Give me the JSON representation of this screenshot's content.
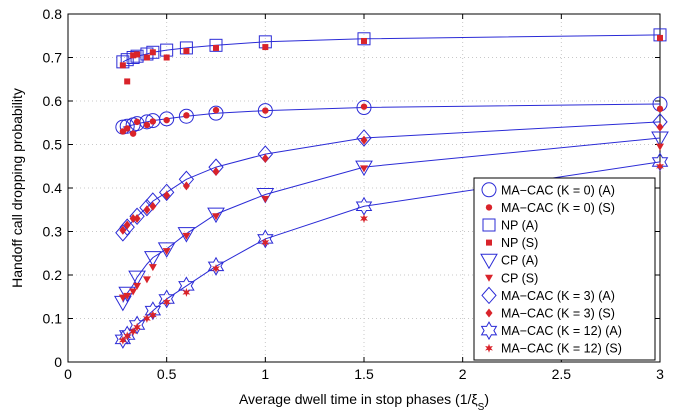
{
  "chart_data": {
    "type": "line",
    "xlabel": "Average dwell time in stop phases (1/ξ",
    "xlabel_sub": "S",
    "xlabel_close": ")",
    "ylabel": "Handoff call dropping probability",
    "xlim": [
      0,
      3
    ],
    "ylim": [
      0,
      0.8
    ],
    "xticks": [
      0,
      0.5,
      1,
      1.5,
      2,
      2.5,
      3
    ],
    "xtick_labels": [
      "0",
      "0.5",
      "1",
      "1.5",
      "2",
      "2.5",
      "3"
    ],
    "yticks": [
      0,
      0.1,
      0.2,
      0.3,
      0.4,
      0.5,
      0.6,
      0.7,
      0.8
    ],
    "ytick_labels": [
      "0",
      "0.1",
      "0.2",
      "0.3",
      "0.4",
      "0.5",
      "0.6",
      "0.7",
      "0.8"
    ],
    "grid": true,
    "legend_position": "bottom-right",
    "colors": {
      "analytical": "#2b2bd6",
      "simulation": "#d9232a",
      "axis": "#000000",
      "grid": "#c8c8c8"
    },
    "series": [
      {
        "name": "MA−CAC (K = 0) (A)",
        "kind": "analytical",
        "marker": "circle",
        "points": [
          [
            0.278,
            0.54
          ],
          [
            0.3,
            0.542
          ],
          [
            0.33,
            0.545
          ],
          [
            0.35,
            0.548
          ],
          [
            0.4,
            0.552
          ],
          [
            0.43,
            0.555
          ],
          [
            0.5,
            0.559
          ],
          [
            0.6,
            0.565
          ],
          [
            0.75,
            0.572
          ],
          [
            1.0,
            0.578
          ],
          [
            1.5,
            0.585
          ],
          [
            3.0,
            0.593
          ]
        ],
        "markers_at": [
          0.278,
          0.3,
          0.33,
          0.35,
          0.4,
          0.43,
          0.5,
          0.6,
          0.75,
          1.0,
          1.5,
          3.0
        ]
      },
      {
        "name": "MA−CAC (K = 0) (S)",
        "kind": "simulation",
        "marker": "dot",
        "points": [
          [
            0.278,
            0.53
          ],
          [
            0.3,
            0.537
          ],
          [
            0.33,
            0.525
          ],
          [
            0.35,
            0.552
          ],
          [
            0.4,
            0.545
          ],
          [
            0.43,
            0.553
          ],
          [
            0.5,
            0.556
          ],
          [
            0.6,
            0.567
          ],
          [
            0.75,
            0.579
          ],
          [
            1.0,
            0.578
          ],
          [
            1.5,
            0.587
          ],
          [
            3.0,
            0.582
          ]
        ]
      },
      {
        "name": "NP (A)",
        "kind": "analytical",
        "marker": "square",
        "points": [
          [
            0.278,
            0.69
          ],
          [
            0.3,
            0.695
          ],
          [
            0.33,
            0.7
          ],
          [
            0.35,
            0.703
          ],
          [
            0.4,
            0.708
          ],
          [
            0.43,
            0.712
          ],
          [
            0.5,
            0.717
          ],
          [
            0.6,
            0.722
          ],
          [
            0.75,
            0.728
          ],
          [
            1.0,
            0.736
          ],
          [
            1.5,
            0.743
          ],
          [
            3.0,
            0.752
          ]
        ],
        "markers_at": [
          0.278,
          0.3,
          0.33,
          0.35,
          0.4,
          0.43,
          0.5,
          0.6,
          0.75,
          1.0,
          1.5,
          3.0
        ]
      },
      {
        "name": "NP (S)",
        "kind": "simulation",
        "marker": "filled-square",
        "points": [
          [
            0.278,
            0.682
          ],
          [
            0.3,
            0.645
          ],
          [
            0.33,
            0.705
          ],
          [
            0.35,
            0.707
          ],
          [
            0.4,
            0.7
          ],
          [
            0.43,
            0.712
          ],
          [
            0.5,
            0.7
          ],
          [
            0.6,
            0.715
          ],
          [
            0.75,
            0.722
          ],
          [
            1.0,
            0.724
          ],
          [
            1.5,
            0.738
          ],
          [
            3.0,
            0.745
          ]
        ]
      },
      {
        "name": "CP (A)",
        "kind": "analytical",
        "marker": "triangle-down",
        "points": [
          [
            0.278,
            0.137
          ],
          [
            0.3,
            0.158
          ],
          [
            0.33,
            0.177
          ],
          [
            0.35,
            0.195
          ],
          [
            0.4,
            0.225
          ],
          [
            0.43,
            0.24
          ],
          [
            0.5,
            0.26
          ],
          [
            0.6,
            0.295
          ],
          [
            0.75,
            0.34
          ],
          [
            1.0,
            0.385
          ],
          [
            1.5,
            0.448
          ],
          [
            3.0,
            0.515
          ]
        ],
        "markers_at": [
          0.278,
          0.3,
          0.35,
          0.43,
          0.5,
          0.6,
          0.75,
          1.0,
          1.5,
          3.0
        ]
      },
      {
        "name": "CP (S)",
        "kind": "simulation",
        "marker": "filled-triangle-down",
        "points": [
          [
            0.278,
            0.148
          ],
          [
            0.3,
            0.152
          ],
          [
            0.33,
            0.162
          ],
          [
            0.35,
            0.175
          ],
          [
            0.4,
            0.19
          ],
          [
            0.43,
            0.218
          ],
          [
            0.5,
            0.255
          ],
          [
            0.6,
            0.29
          ],
          [
            0.75,
            0.335
          ],
          [
            1.0,
            0.375
          ],
          [
            1.5,
            0.445
          ],
          [
            3.0,
            0.495
          ]
        ]
      },
      {
        "name": "MA−CAC (K = 3) (A)",
        "kind": "analytical",
        "marker": "diamond",
        "points": [
          [
            0.278,
            0.297
          ],
          [
            0.3,
            0.31
          ],
          [
            0.33,
            0.325
          ],
          [
            0.35,
            0.335
          ],
          [
            0.4,
            0.355
          ],
          [
            0.43,
            0.37
          ],
          [
            0.5,
            0.39
          ],
          [
            0.6,
            0.42
          ],
          [
            0.75,
            0.448
          ],
          [
            1.0,
            0.478
          ],
          [
            1.5,
            0.515
          ],
          [
            3.0,
            0.552
          ]
        ],
        "markers_at": [
          0.278,
          0.3,
          0.35,
          0.4,
          0.43,
          0.5,
          0.6,
          0.75,
          1.0,
          1.5,
          3.0
        ]
      },
      {
        "name": "MA−CAC (K = 3) (S)",
        "kind": "simulation",
        "marker": "filled-diamond",
        "points": [
          [
            0.278,
            0.303
          ],
          [
            0.3,
            0.315
          ],
          [
            0.33,
            0.33
          ],
          [
            0.35,
            0.33
          ],
          [
            0.4,
            0.35
          ],
          [
            0.43,
            0.358
          ],
          [
            0.5,
            0.383
          ],
          [
            0.6,
            0.405
          ],
          [
            0.75,
            0.438
          ],
          [
            1.0,
            0.468
          ],
          [
            1.5,
            0.51
          ],
          [
            3.0,
            0.54
          ]
        ]
      },
      {
        "name": "MA−CAC (K = 12) (A)",
        "kind": "analytical",
        "marker": "hexagram",
        "points": [
          [
            0.278,
            0.052
          ],
          [
            0.3,
            0.062
          ],
          [
            0.33,
            0.072
          ],
          [
            0.35,
            0.085
          ],
          [
            0.4,
            0.105
          ],
          [
            0.43,
            0.118
          ],
          [
            0.5,
            0.145
          ],
          [
            0.6,
            0.175
          ],
          [
            0.75,
            0.22
          ],
          [
            1.0,
            0.283
          ],
          [
            1.5,
            0.358
          ],
          [
            3.0,
            0.46
          ]
        ],
        "markers_at": [
          0.278,
          0.3,
          0.35,
          0.43,
          0.5,
          0.6,
          0.75,
          1.0,
          1.5,
          3.0
        ]
      },
      {
        "name": "MA−CAC (K = 12) (S)",
        "kind": "simulation",
        "marker": "filled-star",
        "points": [
          [
            0.278,
            0.05
          ],
          [
            0.3,
            0.06
          ],
          [
            0.33,
            0.07
          ],
          [
            0.35,
            0.08
          ],
          [
            0.4,
            0.1
          ],
          [
            0.43,
            0.108
          ],
          [
            0.5,
            0.138
          ],
          [
            0.6,
            0.16
          ],
          [
            0.75,
            0.215
          ],
          [
            1.0,
            0.275
          ],
          [
            1.5,
            0.33
          ],
          [
            3.0,
            0.45
          ]
        ]
      }
    ]
  }
}
